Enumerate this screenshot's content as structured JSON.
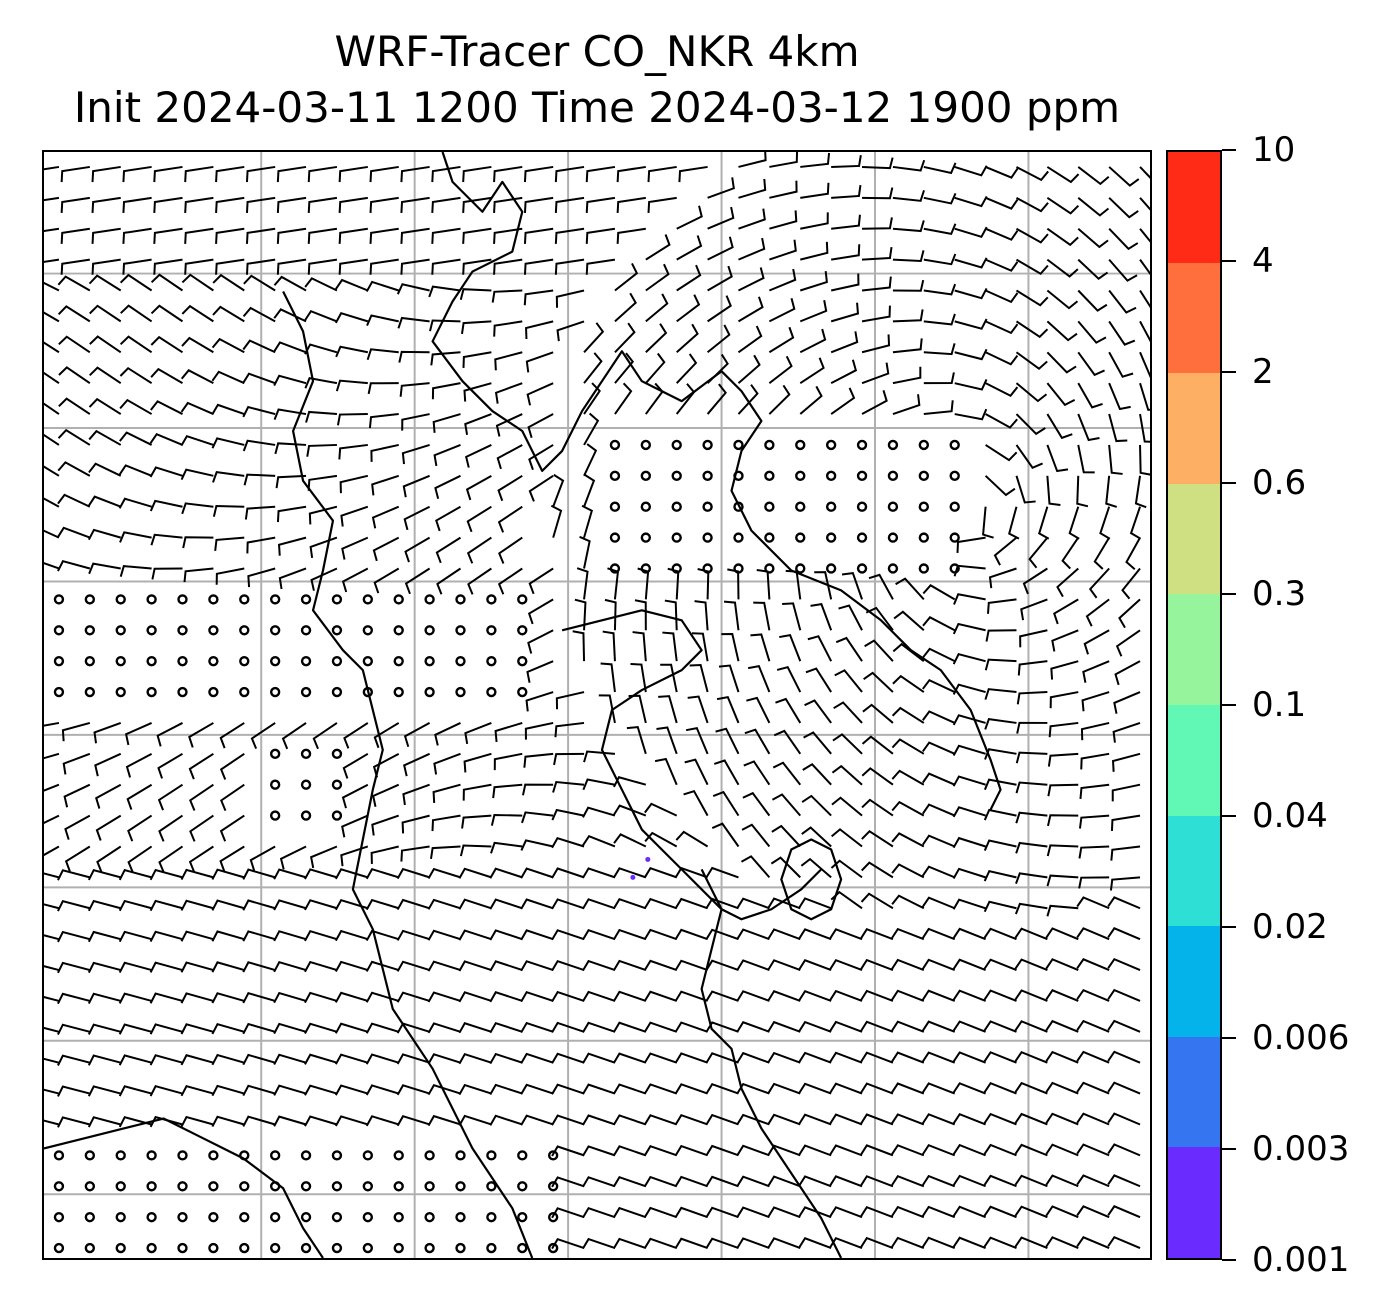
{
  "figure": {
    "title_line1": "WRF-Tracer CO_NKR 4km",
    "title_line2": "Init 2024-03-11 1200 Time 2024-03-12 1900 ppm"
  },
  "map": {
    "field": "CO_NKR tracer concentration (ppm) with wind barbs",
    "gridlines": true,
    "gridline_color": "#b0b0b0",
    "barb_color": "#000000",
    "coastline_color": "#000000",
    "tracer_color_at_low_level": "#6a2bff"
  },
  "colorbar": {
    "levels": [
      "0.001",
      "0.003",
      "0.006",
      "0.02",
      "0.04",
      "0.1",
      "0.3",
      "0.6",
      "2",
      "4",
      "10"
    ],
    "colors": [
      "#6a2bff",
      "#3575f0",
      "#03b3ea",
      "#2ddfd4",
      "#60f8b4",
      "#96f49c",
      "#cfe083",
      "#fdb064",
      "#fe6f3d",
      "#ff2b16"
    ]
  }
}
